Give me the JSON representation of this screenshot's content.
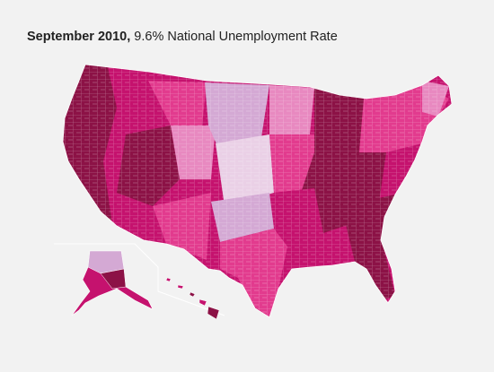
{
  "title": {
    "bold": "September 2010,",
    "rest": " 9.6% National Unemployment Rate"
  },
  "map": {
    "regions": [
      "contiguous-us",
      "alaska",
      "hawaii"
    ],
    "palette": {
      "background": "#f2f2f2",
      "very-high": "#8c1246",
      "high": "#c5126e",
      "elevated": "#e23b8e",
      "moderate": "#e889c0",
      "low": "#d4a9d4",
      "very-low": "#ead0e6",
      "county-border": "#ffffff"
    }
  }
}
